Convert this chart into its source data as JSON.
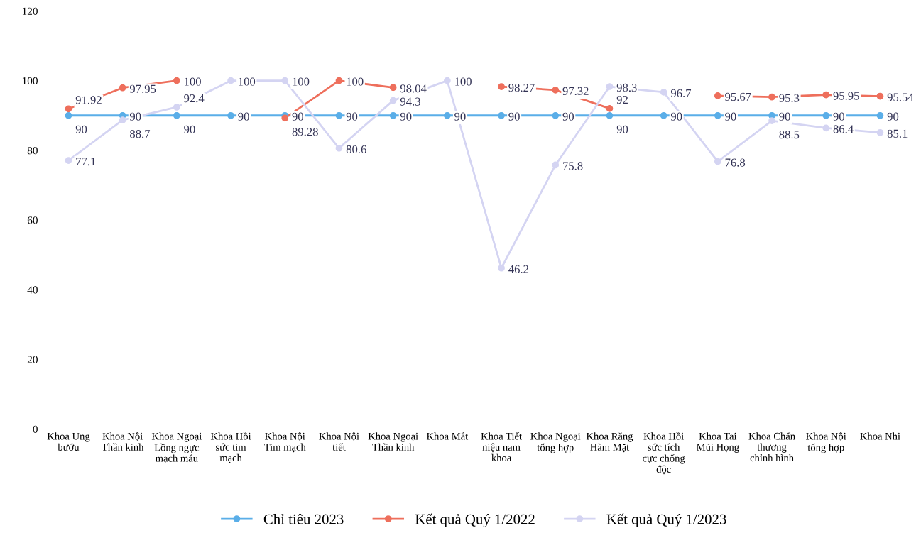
{
  "chart_data": {
    "type": "line",
    "categories": [
      "Khoa Ung bướu",
      "Khoa Nội Thần kinh",
      "Khoa Ngoại Lồng ngực mạch máu",
      "Khoa Hồi sức tim mạch",
      "Khoa Nội Tim mạch",
      "Khoa Nội tiết",
      "Khoa Ngoại Thần kinh",
      "Khoa Mắt",
      "Khoa Tiết niệu nam khoa",
      "Khoa Ngoại tổng hợp",
      "Khoa Răng Hàm Mặt",
      "Khoa Hồi sức tích cực chống độc",
      "Khoa Tai Mũi Họng",
      "Khoa Chấn thương chỉnh hình",
      "Khoa Nội tổng hợp",
      "Khoa Nhi"
    ],
    "series": [
      {
        "name": "Chỉ tiêu 2023",
        "color": "#5aaee8",
        "values": [
          90,
          90,
          90,
          90,
          90,
          90,
          90,
          90,
          90,
          90,
          90,
          90,
          90,
          90,
          90,
          90
        ]
      },
      {
        "name": "Kết quả Quý 1/2022",
        "color": "#ee6f5c",
        "values": [
          91.92,
          97.95,
          100,
          null,
          89.28,
          100,
          98.04,
          null,
          98.27,
          97.32,
          92,
          null,
          95.67,
          95.3,
          95.95,
          95.54
        ]
      },
      {
        "name": "Kết quả Quý 1/2023",
        "color": "#d4d4f2",
        "values": [
          77.1,
          88.7,
          92.4,
          100,
          100,
          80.6,
          94.3,
          100,
          46.2,
          75.8,
          98.3,
          96.7,
          76.8,
          88.5,
          86.4,
          85.1
        ]
      }
    ],
    "ylim": [
      0,
      120
    ],
    "yticks": [
      0,
      20,
      40,
      60,
      80,
      100,
      120
    ],
    "data_labels": true,
    "marker": "circle",
    "legend": "bottom",
    "grid": false
  }
}
